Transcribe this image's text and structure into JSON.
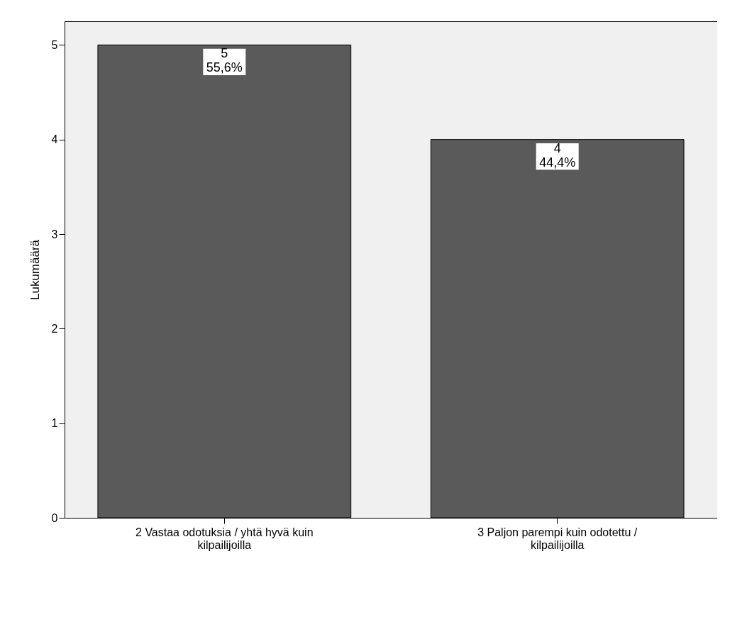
{
  "chart_data": {
    "type": "bar",
    "ylabel": "Lukumäärä",
    "categories": [
      "2 Vastaa odotuksia / yhtä hyvä kuin kilpailijoilla",
      "3 Paljon parempi kuin odotettu / kilpailijoilla"
    ],
    "values": [
      5,
      4
    ],
    "color": "#5a5a5a",
    "value_labels": [
      "5\n55,6%",
      "4\n44,4%"
    ],
    "ylim": [
      0,
      5.25
    ],
    "yticks": [
      0,
      1,
      2,
      3,
      4,
      5
    ],
    "grid": false
  }
}
